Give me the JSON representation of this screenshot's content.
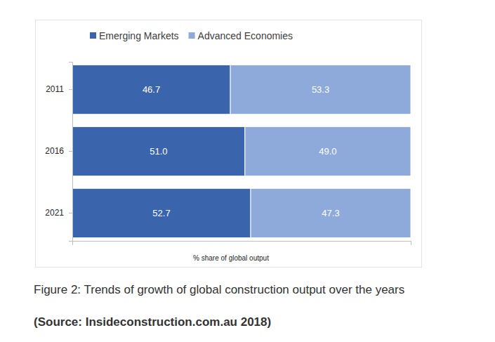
{
  "chart_data": {
    "type": "bar",
    "orientation": "horizontal",
    "stacked": true,
    "title": "Figure 2: Trends of growth of global construction output over the years",
    "source": "(Source: Insideconstruction.com.au 2018)",
    "xlabel": "% share of global output",
    "categories": [
      "2011",
      "2016",
      "2021"
    ],
    "series": [
      {
        "name": "Emerging Markets",
        "color": "#3a64ac",
        "values": [
          46.7,
          51.0,
          52.7
        ],
        "value_labels": [
          "46.7",
          "51.0",
          "52.7"
        ]
      },
      {
        "name": "Advanced Economies",
        "color": "#8eaadb",
        "values": [
          53.3,
          49.0,
          47.3
        ],
        "value_labels": [
          "53.3",
          "49.0",
          "47.3"
        ]
      }
    ],
    "xlim": [
      0,
      100
    ],
    "xticks": [
      0,
      100
    ],
    "data_labels": true,
    "legend": "top",
    "tick_labels": "y"
  }
}
